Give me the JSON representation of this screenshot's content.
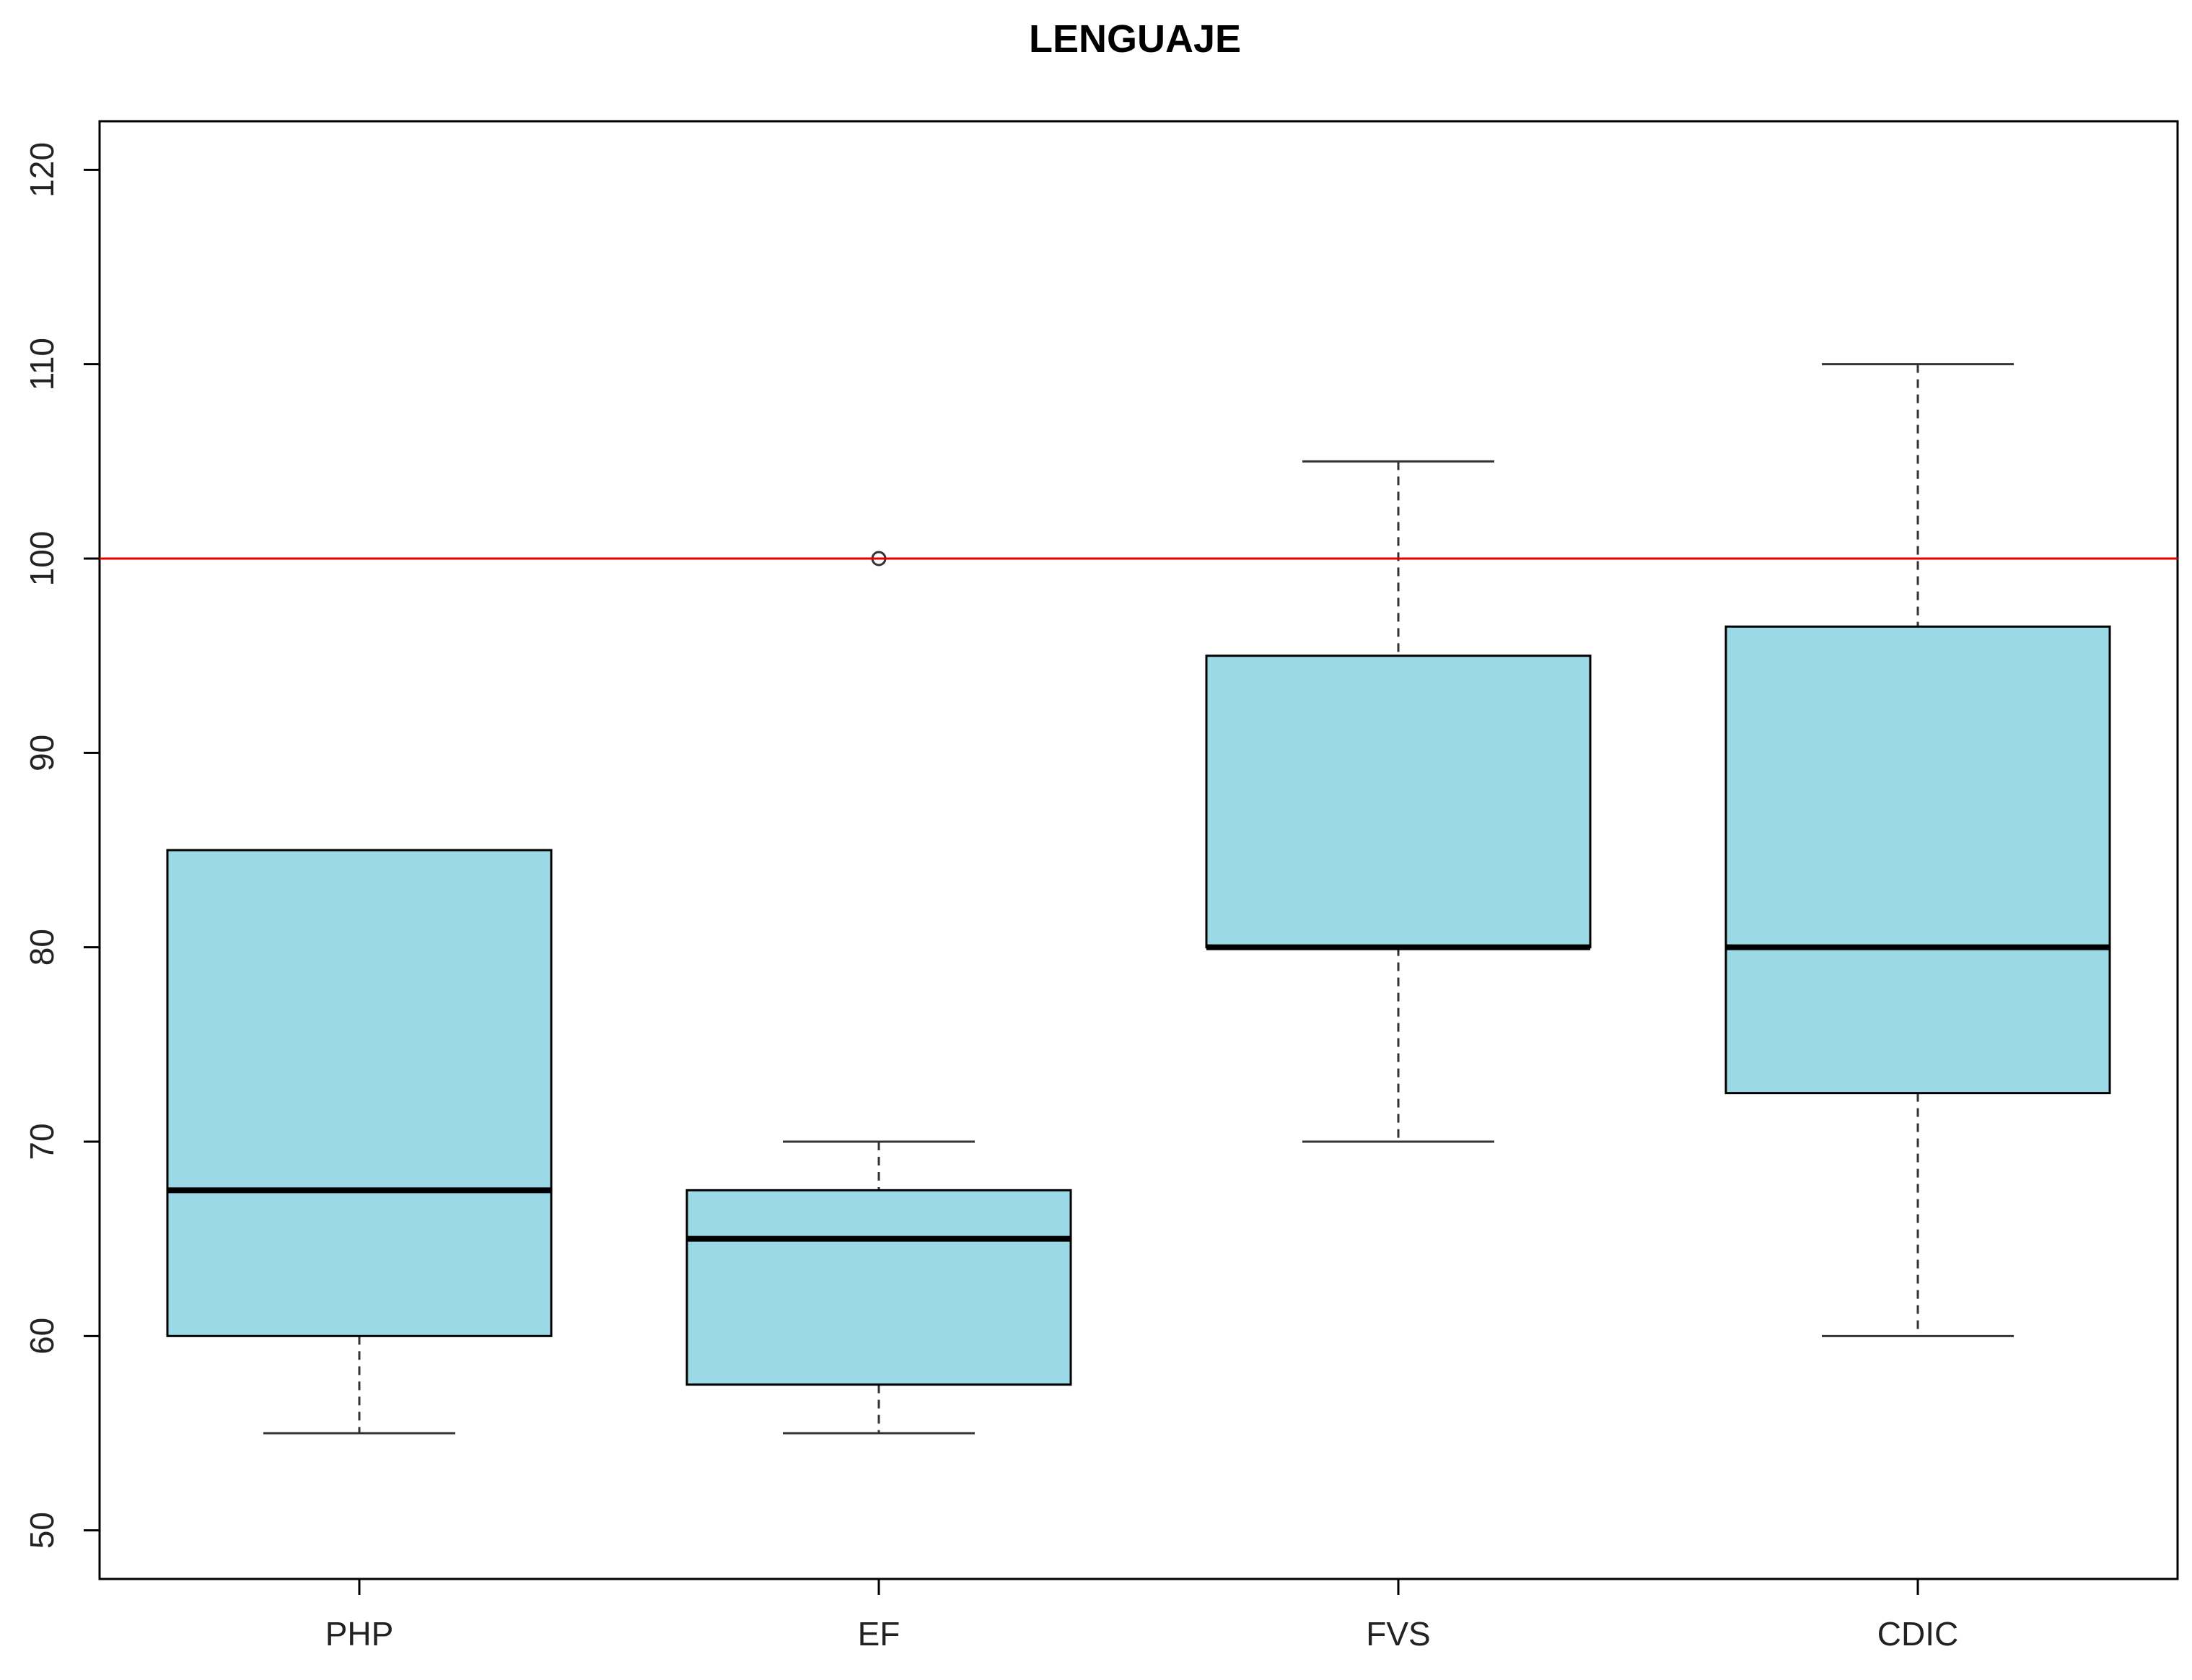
{
  "colors": {
    "box_fill": "#9BD9E6",
    "box_stroke": "#000000",
    "reference_line": "#E00000",
    "axis": "#000000",
    "background": "#FFFFFF"
  },
  "chart_data": {
    "type": "boxplot",
    "title": "LENGUAJE",
    "xlabel": "",
    "ylabel": "",
    "categories": [
      "PHP",
      "EF",
      "FVS",
      "CDIC"
    ],
    "boxes": [
      {
        "category": "PHP",
        "whisker_low": 55,
        "q1": 60,
        "median": 67.5,
        "q3": 85,
        "whisker_high": 85,
        "outliers": []
      },
      {
        "category": "EF",
        "whisker_low": 55,
        "q1": 57.5,
        "median": 65,
        "q3": 67.5,
        "whisker_high": 70,
        "outliers": [
          100
        ]
      },
      {
        "category": "FVS",
        "whisker_low": 70,
        "q1": 80,
        "median": 80,
        "q3": 95,
        "whisker_high": 105,
        "outliers": []
      },
      {
        "category": "CDIC",
        "whisker_low": 60,
        "q1": 72.5,
        "median": 80,
        "q3": 96.5,
        "whisker_high": 110,
        "outliers": []
      }
    ],
    "reference_line": {
      "y": 100
    },
    "y_ticks": [
      50,
      60,
      70,
      80,
      90,
      100,
      110,
      120
    ],
    "ylim": [
      47.5,
      122.5
    ],
    "grid": false,
    "legend": "none"
  }
}
